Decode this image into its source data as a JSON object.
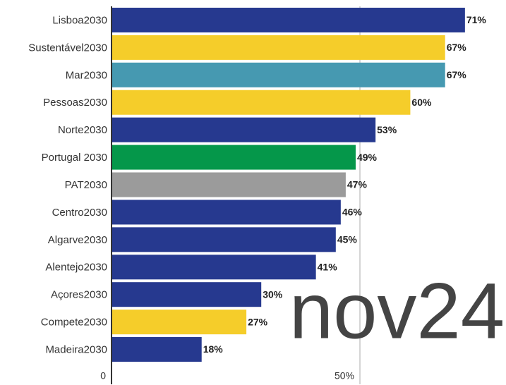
{
  "chart_data": {
    "type": "barh",
    "categories": [
      "Lisboa2030",
      "Sustentável2030",
      "Mar2030",
      "Pessoas2030",
      "Norte2030",
      "Portugal 2030",
      "PAT2030",
      "Centro2030",
      "Algarve2030",
      "Alentejo2030",
      "Açores2030",
      "Compete2030",
      "Madeira2030"
    ],
    "values": [
      71,
      67,
      67,
      60,
      53,
      49,
      47,
      46,
      45,
      41,
      30,
      27,
      18
    ],
    "value_labels": [
      "71%",
      "67%",
      "67%",
      "60%",
      "53%",
      "49%",
      "47%",
      "46%",
      "45%",
      "41%",
      "30%",
      "27%",
      "18%"
    ],
    "colors": [
      "#26398f",
      "#f5cd2a",
      "#4699b1",
      "#f5cd2a",
      "#26398f",
      "#05974a",
      "#9b9b9b",
      "#26398f",
      "#26398f",
      "#26398f",
      "#26398f",
      "#f5cd2a",
      "#26398f"
    ],
    "xlim": [
      0,
      79.4
    ],
    "xticks": [
      0,
      {
        "value": 50,
        "label": "50%"
      }
    ],
    "grid": true,
    "annotation": "nov24"
  }
}
